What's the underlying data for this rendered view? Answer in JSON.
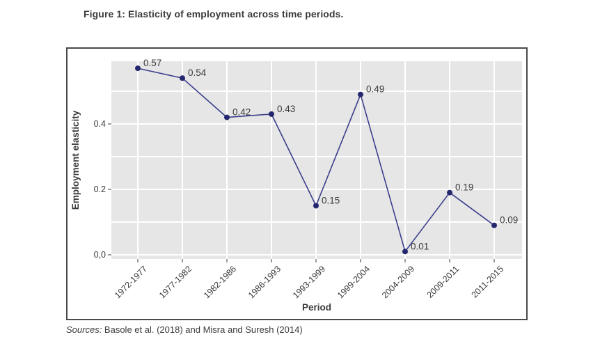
{
  "figure": {
    "title": "Figure 1: Elasticity of employment across time periods.",
    "sources_label": "Sources:",
    "sources_text": " Basole et al. (2018) and Misra and Suresh (2014)"
  },
  "chart_data": {
    "type": "line",
    "title": "",
    "xlabel": "Period",
    "ylabel": "Employment elasticity",
    "categories": [
      "1972-1977",
      "1977-1982",
      "1982-1986",
      "1986-1993",
      "1993-1999",
      "1999-2004",
      "2004-2009",
      "2009-2011",
      "2011-2015"
    ],
    "values": [
      0.57,
      0.54,
      0.42,
      0.43,
      0.15,
      0.49,
      0.01,
      0.19,
      0.09
    ],
    "point_labels": [
      "0.57",
      "0.54",
      "0.42",
      "0.43",
      "0.15",
      "0.49",
      "0.01",
      "0.19",
      "0.09"
    ],
    "ylim": [
      -0.013,
      0.592
    ],
    "yticks": [
      {
        "value": 0.0,
        "label": "0,0"
      },
      {
        "value": 0.2,
        "label": "0.2"
      },
      {
        "value": 0.4,
        "label": "0.4"
      }
    ],
    "gridline_values": [
      0.0,
      0.1,
      0.2,
      0.3,
      0.4,
      0.5
    ],
    "grid": "on",
    "legend": "none",
    "colors": {
      "line": "#3b3f8c",
      "marker": "#24276e",
      "plot_background": "#e6e6e6",
      "gridline": "#ffffff",
      "box_border": "#4a4a4a",
      "text": "#3a3a3a"
    }
  }
}
